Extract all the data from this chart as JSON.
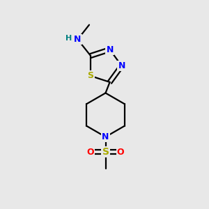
{
  "background_color": "#e8e8e8",
  "bond_color": "#000000",
  "atom_colors": {
    "N": "#0000ff",
    "S_thiadiazole": "#aaaa00",
    "S_sulfonyl": "#aaaa00",
    "O": "#ff0000",
    "H": "#008080",
    "C": "#000000"
  },
  "figsize": [
    3.0,
    3.0
  ],
  "dpi": 100,
  "lw": 1.6
}
